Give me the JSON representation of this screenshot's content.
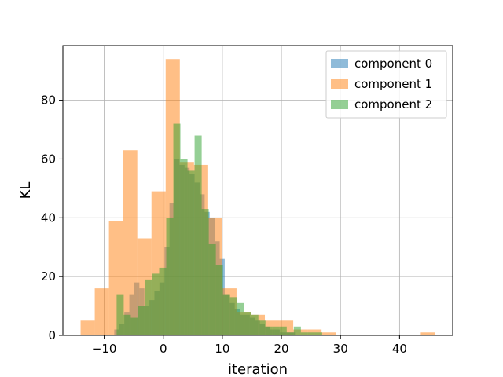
{
  "chart_data": {
    "type": "histogram",
    "xlabel": "iteration",
    "ylabel": "KL",
    "xlim": [
      -17,
      49
    ],
    "ylim": [
      0,
      98.6
    ],
    "xticks": [
      -10,
      0,
      10,
      20,
      30,
      40
    ],
    "yticks": [
      0,
      20,
      40,
      60,
      80
    ],
    "grid": true,
    "legend_position": "top-right",
    "series": [
      {
        "name": "component 0",
        "color": "#1f77b4",
        "opacity": 0.5,
        "bins": [
          [
            -8.3,
            -7.45,
            2
          ],
          [
            -7.45,
            -6.6,
            4
          ],
          [
            -6.6,
            -5.75,
            8
          ],
          [
            -5.75,
            -4.9,
            14
          ],
          [
            -4.9,
            -4.05,
            18
          ],
          [
            -4.05,
            -3.2,
            16
          ],
          [
            -3.2,
            -2.35,
            10
          ],
          [
            -2.35,
            -1.5,
            12
          ],
          [
            -1.5,
            -0.65,
            15
          ],
          [
            -0.65,
            0.2,
            18
          ],
          [
            0.2,
            1.05,
            30
          ],
          [
            1.05,
            1.9,
            45
          ],
          [
            1.9,
            2.75,
            60
          ],
          [
            2.75,
            3.6,
            58
          ],
          [
            3.6,
            4.45,
            57
          ],
          [
            4.45,
            5.3,
            55
          ],
          [
            5.3,
            6.15,
            52
          ],
          [
            6.15,
            7.0,
            48
          ],
          [
            7.0,
            7.85,
            42
          ],
          [
            7.85,
            8.7,
            40
          ],
          [
            8.7,
            9.55,
            32
          ],
          [
            9.55,
            10.4,
            26
          ],
          [
            10.4,
            11.25,
            14
          ],
          [
            11.25,
            12.1,
            11
          ],
          [
            12.1,
            12.95,
            9
          ],
          [
            12.95,
            13.8,
            7
          ],
          [
            13.8,
            14.65,
            7
          ],
          [
            14.65,
            15.5,
            6
          ],
          [
            15.5,
            16.35,
            5
          ],
          [
            16.35,
            17.2,
            4
          ],
          [
            17.2,
            18.05,
            3
          ],
          [
            18.05,
            18.9,
            2
          ],
          [
            18.9,
            19.75,
            2
          ],
          [
            19.75,
            20.6,
            1
          ],
          [
            20.6,
            21.45,
            1
          ],
          [
            21.45,
            22.3,
            1
          ]
        ]
      },
      {
        "name": "component 1",
        "color": "#ff7f0e",
        "opacity": 0.5,
        "bins": [
          [
            -14.0,
            -11.6,
            5
          ],
          [
            -11.6,
            -9.2,
            16
          ],
          [
            -9.2,
            -6.8,
            39
          ],
          [
            -6.8,
            -4.4,
            63
          ],
          [
            -4.4,
            -2.0,
            33
          ],
          [
            -2.0,
            0.4,
            49
          ],
          [
            0.4,
            2.8,
            94
          ],
          [
            2.8,
            5.2,
            59
          ],
          [
            5.2,
            7.6,
            58
          ],
          [
            7.6,
            10.0,
            40
          ],
          [
            10.0,
            12.4,
            16
          ],
          [
            12.4,
            14.8,
            8
          ],
          [
            14.8,
            17.2,
            7
          ],
          [
            17.2,
            19.6,
            5
          ],
          [
            19.6,
            22.0,
            5
          ],
          [
            22.0,
            24.4,
            2
          ],
          [
            24.4,
            26.8,
            2
          ],
          [
            26.8,
            29.2,
            1
          ],
          [
            29.2,
            31.6,
            0
          ],
          [
            31.6,
            34.0,
            0
          ],
          [
            34.0,
            36.4,
            0
          ],
          [
            36.4,
            38.8,
            0
          ],
          [
            38.8,
            41.2,
            0
          ],
          [
            41.2,
            43.6,
            0
          ],
          [
            43.6,
            46.0,
            1
          ]
        ]
      },
      {
        "name": "component 2",
        "color": "#2ca02c",
        "opacity": 0.5,
        "bins": [
          [
            -7.9,
            -6.7,
            14
          ],
          [
            -6.7,
            -5.5,
            7
          ],
          [
            -5.5,
            -4.3,
            6
          ],
          [
            -4.3,
            -3.1,
            10
          ],
          [
            -3.1,
            -1.9,
            19
          ],
          [
            -1.9,
            -0.7,
            21
          ],
          [
            -0.7,
            0.5,
            23
          ],
          [
            0.5,
            1.7,
            40
          ],
          [
            1.7,
            2.9,
            72
          ],
          [
            2.9,
            4.1,
            60
          ],
          [
            4.1,
            5.3,
            56
          ],
          [
            5.3,
            6.5,
            68
          ],
          [
            6.5,
            7.7,
            43
          ],
          [
            7.7,
            8.9,
            31
          ],
          [
            8.9,
            10.1,
            24
          ],
          [
            10.1,
            11.3,
            14
          ],
          [
            11.3,
            12.5,
            13
          ],
          [
            12.5,
            13.7,
            11
          ],
          [
            13.7,
            14.9,
            8
          ],
          [
            14.9,
            16.1,
            7
          ],
          [
            16.1,
            17.3,
            5
          ],
          [
            17.3,
            18.5,
            3
          ],
          [
            18.5,
            19.7,
            3
          ],
          [
            19.7,
            20.9,
            3
          ],
          [
            20.9,
            22.1,
            1
          ],
          [
            22.1,
            23.3,
            3
          ],
          [
            23.3,
            24.5,
            1
          ],
          [
            24.5,
            25.7,
            1
          ],
          [
            25.7,
            26.9,
            1
          ]
        ]
      }
    ]
  }
}
